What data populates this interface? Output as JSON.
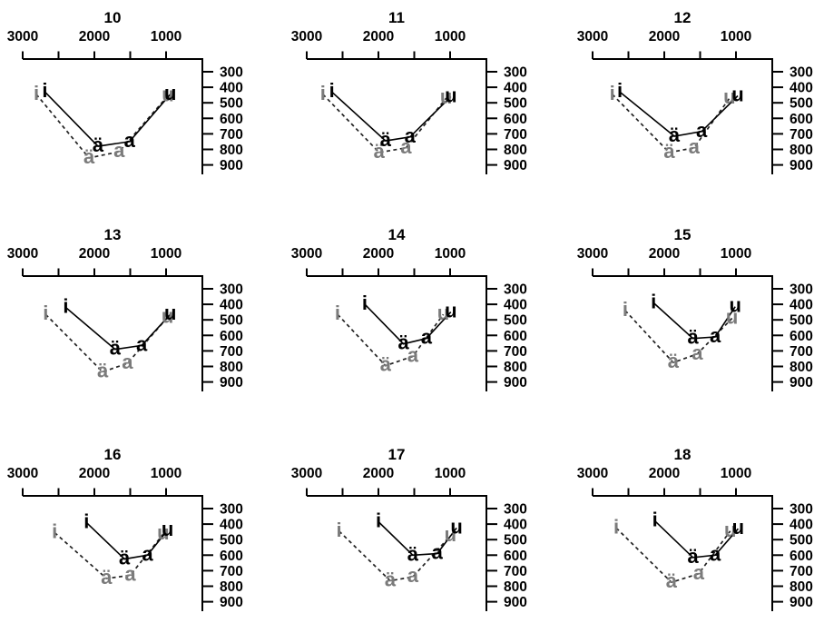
{
  "figure": {
    "background": "#ffffff",
    "colors": {
      "axis": "#000000",
      "series_black": "#000000",
      "series_gray": "#7b7b7b",
      "dashed_line": "#222222"
    }
  },
  "chart_data": {
    "type": "scatter",
    "layout": "3x3-grid",
    "description": "Vowel formant charts (F2 top axis reversed, F1 right axis) for panels 10-18; each panel has a solid black vowel series and a dashed gray vowel series connected i-ä-a-u.",
    "x_axis": {
      "position": "top",
      "reversed": true,
      "tick_values": [
        3000,
        2500,
        2000,
        1500,
        1000
      ],
      "labeled_ticks": [
        "3000",
        "2000",
        "1000"
      ],
      "labeled_values": [
        3000,
        2000,
        1000
      ],
      "domain": [
        3000,
        500
      ]
    },
    "y_axis": {
      "position": "right",
      "increases_downward": true,
      "tick_values": [
        300,
        400,
        500,
        600,
        700,
        800,
        900
      ],
      "tick_labels": [
        "300",
        "400",
        "500",
        "600",
        "700",
        "800",
        "900"
      ],
      "domain": [
        220,
        960
      ]
    },
    "vowels": [
      "i",
      "ä",
      "a",
      "u"
    ],
    "series": [
      {
        "id": "gray",
        "line_style": "dashed",
        "letter_color": "#7b7b7b",
        "line_color": "#222222"
      },
      {
        "id": "black",
        "line_style": "solid",
        "letter_color": "#000000",
        "line_color": "#000000"
      }
    ],
    "panels": [
      {
        "title": "10",
        "black": {
          "i": [
            2690,
            430
          ],
          "ä": [
            1950,
            780
          ],
          "a": [
            1510,
            750
          ],
          "u": [
            940,
            445
          ]
        },
        "gray": {
          "i": [
            2810,
            445
          ],
          "ä": [
            2075,
            855
          ],
          "a": [
            1655,
            815
          ],
          "u": [
            975,
            455
          ]
        }
      },
      {
        "title": "11",
        "black": {
          "i": [
            2650,
            430
          ],
          "ä": [
            1900,
            745
          ],
          "a": [
            1560,
            720
          ],
          "u": [
            990,
            460
          ]
        },
        "gray": {
          "i": [
            2775,
            445
          ],
          "ä": [
            1990,
            820
          ],
          "a": [
            1615,
            790
          ],
          "u": [
            1055,
            470
          ]
        }
      },
      {
        "title": "12",
        "black": {
          "i": [
            2620,
            430
          ],
          "ä": [
            1860,
            715
          ],
          "a": [
            1480,
            685
          ],
          "u": [
            975,
            455
          ]
        },
        "gray": {
          "i": [
            2725,
            445
          ],
          "ä": [
            1930,
            820
          ],
          "a": [
            1585,
            790
          ],
          "u": [
            1090,
            470
          ]
        }
      },
      {
        "title": "13",
        "black": {
          "i": [
            2400,
            420
          ],
          "ä": [
            1710,
            690
          ],
          "a": [
            1340,
            665
          ],
          "u": [
            940,
            465
          ]
        },
        "gray": {
          "i": [
            2680,
            465
          ],
          "ä": [
            1885,
            835
          ],
          "a": [
            1540,
            780
          ],
          "u": [
            980,
            485
          ]
        }
      },
      {
        "title": "14",
        "black": {
          "i": [
            2190,
            400
          ],
          "ä": [
            1650,
            655
          ],
          "a": [
            1330,
            620
          ],
          "u": [
            990,
            450
          ]
        },
        "gray": {
          "i": [
            2570,
            465
          ],
          "ä": [
            1900,
            795
          ],
          "a": [
            1520,
            735
          ],
          "u": [
            1095,
            465
          ]
        }
      },
      {
        "title": "15",
        "black": {
          "i": [
            2150,
            390
          ],
          "ä": [
            1600,
            620
          ],
          "a": [
            1290,
            610
          ],
          "u": [
            1010,
            415
          ]
        },
        "gray": {
          "i": [
            2545,
            440
          ],
          "ä": [
            1875,
            775
          ],
          "a": [
            1540,
            720
          ],
          "u": [
            1055,
            490
          ]
        }
      },
      {
        "title": "16",
        "black": {
          "i": [
            2110,
            390
          ],
          "ä": [
            1580,
            625
          ],
          "a": [
            1260,
            600
          ],
          "u": [
            980,
            440
          ]
        },
        "gray": {
          "i": [
            2555,
            455
          ],
          "ä": [
            1830,
            750
          ],
          "a": [
            1500,
            730
          ],
          "u": [
            1040,
            465
          ]
        }
      },
      {
        "title": "17",
        "black": {
          "i": [
            2000,
            385
          ],
          "ä": [
            1520,
            600
          ],
          "a": [
            1180,
            590
          ],
          "u": [
            910,
            425
          ]
        },
        "gray": {
          "i": [
            2550,
            445
          ],
          "ä": [
            1835,
            765
          ],
          "a": [
            1520,
            740
          ],
          "u": [
            995,
            475
          ]
        }
      },
      {
        "title": "18",
        "black": {
          "i": [
            2130,
            380
          ],
          "ä": [
            1600,
            615
          ],
          "a": [
            1290,
            600
          ],
          "u": [
            970,
            430
          ]
        },
        "gray": {
          "i": [
            2670,
            425
          ],
          "ä": [
            1900,
            775
          ],
          "a": [
            1520,
            720
          ],
          "u": [
            1080,
            445
          ]
        }
      }
    ]
  }
}
